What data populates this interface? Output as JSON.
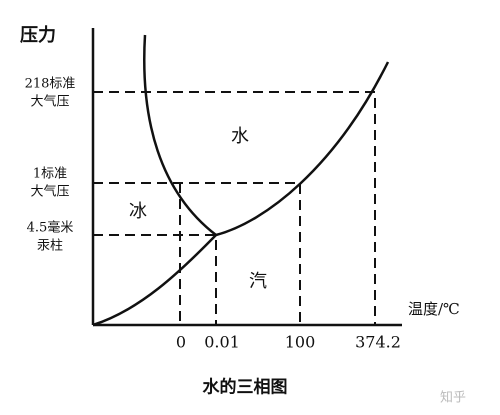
{
  "axes": {
    "y_label": "压力",
    "x_label": "温度/℃"
  },
  "y_levels": [
    {
      "lines": [
        "218标准",
        "大气压"
      ]
    },
    {
      "lines": [
        "1标准",
        "大气压"
      ]
    },
    {
      "lines": [
        "4.5毫米",
        "汞柱"
      ]
    }
  ],
  "x_labels": [
    "0",
    "0.01",
    "100",
    "374.2"
  ],
  "regions": {
    "water": "水",
    "ice": "冰",
    "vapor": "汽"
  },
  "caption": "水的三相图",
  "watermark": "知乎"
}
